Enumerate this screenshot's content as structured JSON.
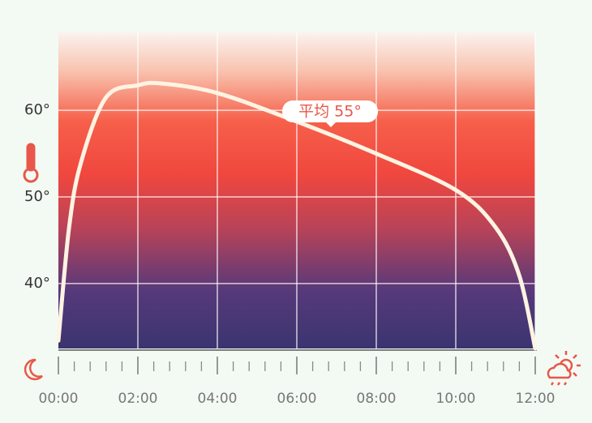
{
  "chart_data": {
    "type": "line",
    "x": [
      0,
      0.27,
      0.57,
      1.2,
      2,
      2.6,
      4,
      6,
      8,
      10,
      11,
      11.6,
      12
    ],
    "values": [
      33.4,
      46.5,
      54.0,
      61.5,
      62.9,
      63.1,
      62.0,
      58.7,
      55.0,
      50.8,
      46.5,
      40.9,
      32.5
    ],
    "color": "#fff3e2",
    "xlim": [
      0,
      12
    ],
    "xticks": [
      {
        "value": 0,
        "label": "00:00"
      },
      {
        "value": 2,
        "label": "02:00"
      },
      {
        "value": 4,
        "label": "04:00"
      },
      {
        "value": 6,
        "label": "06:00"
      },
      {
        "value": 8,
        "label": "08:00"
      },
      {
        "value": 10,
        "label": "10:00"
      },
      {
        "value": 12,
        "label": "12:00"
      }
    ],
    "ylim": [
      32.5,
      69
    ],
    "yticks": [
      {
        "value": 40,
        "label": "40°"
      },
      {
        "value": 50,
        "label": "50°"
      },
      {
        "value": 60,
        "label": "60°"
      }
    ],
    "grid": true,
    "annotation": "平均 55°"
  }
}
